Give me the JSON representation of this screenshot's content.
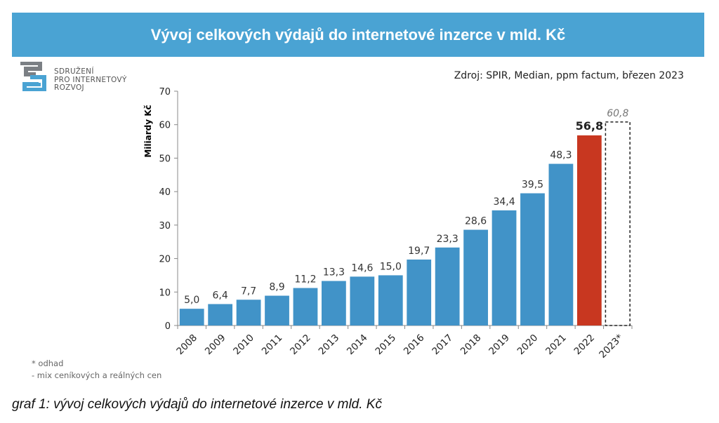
{
  "header": {
    "title": "Vývoj celkových výdajů do internetové inzerce v mld. Kč"
  },
  "logo": {
    "lines": [
      "SDRUŽENÍ",
      "PRO INTERNETOVÝ",
      "ROZVOJ"
    ]
  },
  "source": "Zdroj: SPIR, Median, ppm factum, březen 2023",
  "notes": [
    "* odhad",
    "- mix ceníkových a reálných cen"
  ],
  "caption": "graf 1: vývoj celkových výdajů do internetové inzerce v mld. Kč",
  "colors": {
    "banner": "#4aa3d3",
    "bar": "#4193c8",
    "highlight": "#c83720",
    "estimate_border": "#222222"
  },
  "chart_data": {
    "type": "bar",
    "title": "Vývoj celkových výdajů do internetové inzerce v mld. Kč",
    "xlabel": "",
    "ylabel": "Miliardy Kč",
    "ylim": [
      0,
      70
    ],
    "yticks": [
      "0",
      "10",
      "20",
      "30",
      "40",
      "50",
      "60",
      "70"
    ],
    "grid": false,
    "categories": [
      "2008",
      "2009",
      "2010",
      "2011",
      "2012",
      "2013",
      "2014",
      "2015",
      "2016",
      "2017",
      "2018",
      "2019",
      "2020",
      "2021",
      "2022",
      "2023*"
    ],
    "values": [
      5.0,
      6.4,
      7.7,
      8.9,
      11.2,
      13.3,
      14.6,
      15.0,
      19.7,
      23.3,
      28.6,
      34.4,
      39.5,
      48.3,
      56.8,
      60.8
    ],
    "labels": [
      "5,0",
      "6,4",
      "7,7",
      "8,9",
      "11,2",
      "13,3",
      "14,6",
      "15,0",
      "19,7",
      "23,3",
      "28,6",
      "34,4",
      "39,5",
      "48,3",
      "56,8",
      "60,8"
    ],
    "styles": [
      "normal",
      "normal",
      "normal",
      "normal",
      "normal",
      "normal",
      "normal",
      "normal",
      "normal",
      "normal",
      "normal",
      "normal",
      "normal",
      "normal",
      "highlight",
      "estimate"
    ]
  }
}
